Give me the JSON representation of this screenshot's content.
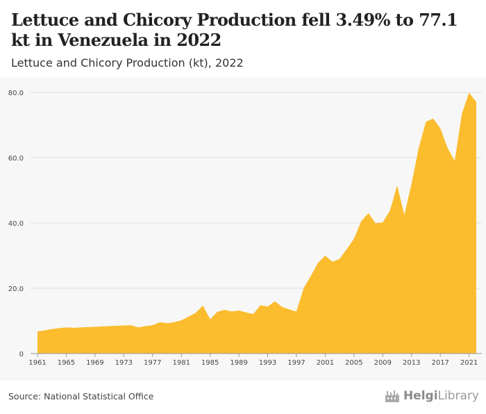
{
  "header": {
    "title": "Lettuce and Chicory Production fell 3.49% to 77.1 kt in Venezuela in 2022",
    "subtitle": "Lettuce and Chicory Production (kt), 2022"
  },
  "footer": {
    "source": "Source: National Statistical Office",
    "logo_text_bold": "Helgi",
    "logo_text": "Library",
    "logo_icon": "factory-icon"
  },
  "colors": {
    "area": "#fbbc2e",
    "grid": "#dddddd",
    "axis": "#999999",
    "tick_label": "#444444"
  },
  "chart_data": {
    "type": "area",
    "title": "Lettuce and Chicory Production (kt), 2022",
    "xlabel": "",
    "ylabel": "",
    "ylim": [
      0,
      80
    ],
    "xlim": [
      1961,
      2022
    ],
    "yticks": [
      0,
      20,
      40,
      60,
      80
    ],
    "ytick_labels": [
      "0",
      "20.0",
      "40.0",
      "60.0",
      "80.0"
    ],
    "xticks": [
      1961,
      1965,
      1969,
      1973,
      1977,
      1981,
      1985,
      1989,
      1993,
      1997,
      2001,
      2005,
      2009,
      2013,
      2017,
      2021
    ],
    "grid": true,
    "legend": "none",
    "x": [
      1961,
      1962,
      1963,
      1964,
      1965,
      1966,
      1967,
      1968,
      1969,
      1970,
      1971,
      1972,
      1973,
      1974,
      1975,
      1976,
      1977,
      1978,
      1979,
      1980,
      1981,
      1982,
      1983,
      1984,
      1985,
      1986,
      1987,
      1988,
      1989,
      1990,
      1991,
      1992,
      1993,
      1994,
      1995,
      1996,
      1997,
      1998,
      1999,
      2000,
      2001,
      2002,
      2003,
      2004,
      2005,
      2006,
      2007,
      2008,
      2009,
      2010,
      2011,
      2012,
      2013,
      2014,
      2015,
      2016,
      2017,
      2018,
      2019,
      2020,
      2021,
      2022
    ],
    "values": [
      6.8,
      7.1,
      7.5,
      7.8,
      8.0,
      7.9,
      8.0,
      8.1,
      8.2,
      8.3,
      8.4,
      8.5,
      8.6,
      8.7,
      8.0,
      8.4,
      8.7,
      9.6,
      9.3,
      9.6,
      10.2,
      11.3,
      12.5,
      14.7,
      10.5,
      12.8,
      13.4,
      12.9,
      13.2,
      12.6,
      12.1,
      14.8,
      14.4,
      16.0,
      14.3,
      13.5,
      12.9,
      20.0,
      23.8,
      27.8,
      30.0,
      28.1,
      29.0,
      32.0,
      35.2,
      40.5,
      43.0,
      39.9,
      40.2,
      43.8,
      51.5,
      42.5,
      52.0,
      63.0,
      71.0,
      72.0,
      69.0,
      63.0,
      59.0,
      73.5,
      79.9,
      77.1
    ]
  }
}
